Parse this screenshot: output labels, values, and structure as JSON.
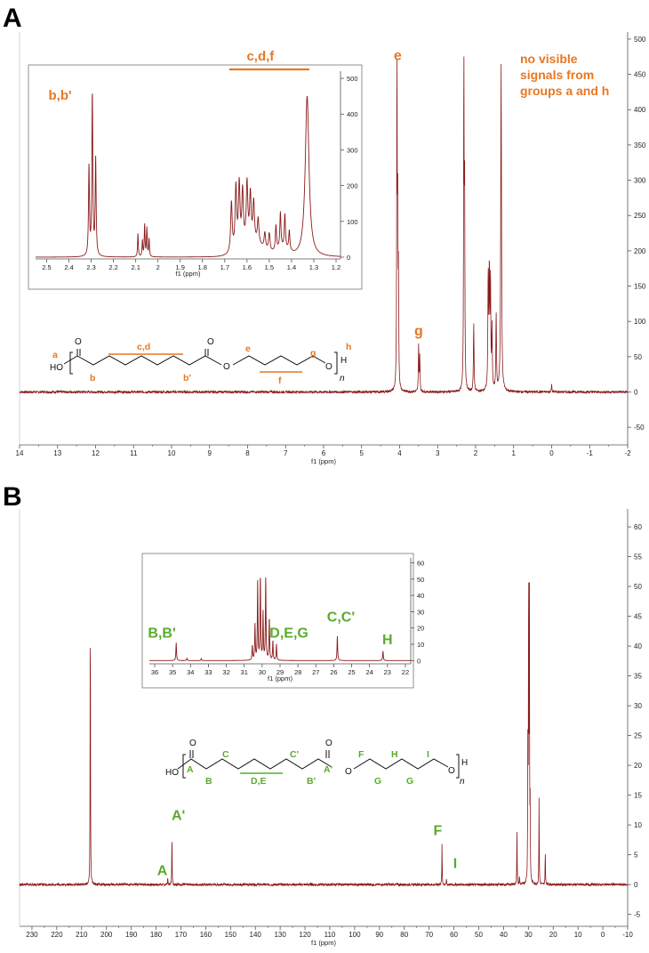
{
  "colors": {
    "spectrum": "#8b1a1a",
    "proton_annotation": "#e87722",
    "carbon_annotation": "#5aaa2e",
    "axis": "#555555"
  },
  "panels": {
    "A": {
      "letter": "A"
    },
    "B": {
      "letter": "B"
    }
  },
  "chart_data": [
    {
      "id": "A-main",
      "type": "line",
      "xlabel": "f1 (ppm)",
      "x_reversed": true,
      "xlim": [
        14,
        -2
      ],
      "ylim": [
        -75,
        510
      ],
      "xticks": [
        14,
        13,
        12,
        11,
        10,
        9,
        8,
        7,
        6,
        5,
        4,
        3,
        2,
        1,
        0,
        -1,
        -2
      ],
      "yticks": [
        -50,
        0,
        50,
        100,
        150,
        200,
        250,
        300,
        350,
        400,
        450,
        500
      ],
      "peaks": [
        {
          "x": 4.07,
          "y": 460,
          "w": 0.008
        },
        {
          "x": 4.05,
          "y": 230,
          "w": 0.008
        },
        {
          "x": 4.03,
          "y": 150,
          "w": 0.008
        },
        {
          "x": 3.5,
          "y": 68,
          "w": 0.008
        },
        {
          "x": 3.47,
          "y": 50,
          "w": 0.008
        },
        {
          "x": 2.31,
          "y": 465,
          "w": 0.008
        },
        {
          "x": 2.29,
          "y": 270,
          "w": 0.008
        },
        {
          "x": 2.05,
          "y": 95,
          "w": 0.01
        },
        {
          "x": 1.67,
          "y": 160,
          "w": 0.01
        },
        {
          "x": 1.64,
          "y": 165,
          "w": 0.01
        },
        {
          "x": 1.61,
          "y": 150,
          "w": 0.01
        },
        {
          "x": 1.57,
          "y": 85,
          "w": 0.01
        },
        {
          "x": 1.46,
          "y": 110,
          "w": 0.01
        },
        {
          "x": 1.33,
          "y": 465,
          "w": 0.012
        },
        {
          "x": 0.0,
          "y": 10,
          "w": 0.01
        }
      ],
      "annotations": [
        {
          "text": "e",
          "x": 4.05,
          "y": 470
        },
        {
          "text": "g",
          "x": 3.5,
          "y": 80
        }
      ],
      "note": [
        "no visible",
        "signals from",
        "groups a and h"
      ]
    },
    {
      "id": "A-inset",
      "type": "line",
      "xlabel": "f1 (ppm)",
      "x_reversed": true,
      "xlim": [
        2.55,
        1.18
      ],
      "ylim": [
        -5,
        520
      ],
      "xticks": [
        2.5,
        2.4,
        2.3,
        2.2,
        2.1,
        2.0,
        1.9,
        1.8,
        1.7,
        1.6,
        1.5,
        1.4,
        1.3,
        1.2
      ],
      "yticks": [
        0,
        100,
        200,
        300,
        400,
        500
      ],
      "peaks": [
        {
          "x": 2.31,
          "y": 250,
          "w": 0.0025
        },
        {
          "x": 2.295,
          "y": 455,
          "w": 0.0025
        },
        {
          "x": 2.28,
          "y": 270,
          "w": 0.0025
        },
        {
          "x": 2.09,
          "y": 65,
          "w": 0.002
        },
        {
          "x": 2.07,
          "y": 45,
          "w": 0.002
        },
        {
          "x": 2.06,
          "y": 90,
          "w": 0.002
        },
        {
          "x": 2.05,
          "y": 80,
          "w": 0.002
        },
        {
          "x": 2.04,
          "y": 50,
          "w": 0.002
        },
        {
          "x": 1.67,
          "y": 140,
          "w": 0.004
        },
        {
          "x": 1.65,
          "y": 175,
          "w": 0.004
        },
        {
          "x": 1.635,
          "y": 175,
          "w": 0.004
        },
        {
          "x": 1.62,
          "y": 150,
          "w": 0.004
        },
        {
          "x": 1.6,
          "y": 165,
          "w": 0.004
        },
        {
          "x": 1.585,
          "y": 130,
          "w": 0.004
        },
        {
          "x": 1.57,
          "y": 110,
          "w": 0.004
        },
        {
          "x": 1.55,
          "y": 70,
          "w": 0.004
        },
        {
          "x": 1.52,
          "y": 45,
          "w": 0.004
        },
        {
          "x": 1.5,
          "y": 50,
          "w": 0.004
        },
        {
          "x": 1.47,
          "y": 70,
          "w": 0.003
        },
        {
          "x": 1.45,
          "y": 100,
          "w": 0.003
        },
        {
          "x": 1.43,
          "y": 95,
          "w": 0.003
        },
        {
          "x": 1.41,
          "y": 55,
          "w": 0.003
        },
        {
          "x": 1.33,
          "y": 450,
          "w": 0.01
        }
      ],
      "annotations": [
        {
          "text": "b,b'",
          "x": 2.44,
          "y": 440
        },
        {
          "text": "c,d,f",
          "x": 1.54,
          "y": 550
        }
      ],
      "bracket": {
        "x1": 1.68,
        "x2": 1.32,
        "y": 525
      }
    },
    {
      "id": "B-main",
      "type": "line",
      "xlabel": "f1 (ppm)",
      "x_reversed": true,
      "xlim": [
        235,
        -10
      ],
      "ylim": [
        -7,
        63
      ],
      "xticks": [
        230,
        220,
        210,
        200,
        190,
        180,
        170,
        160,
        150,
        140,
        130,
        120,
        110,
        100,
        90,
        80,
        70,
        60,
        50,
        40,
        30,
        20,
        10,
        0,
        -10
      ],
      "yticks": [
        -5,
        0,
        5,
        10,
        15,
        20,
        25,
        30,
        35,
        40,
        45,
        50,
        55,
        60
      ],
      "peaks": [
        {
          "x": 206.5,
          "y": 51,
          "w": 0.08
        },
        {
          "x": 175.3,
          "y": 1.2,
          "w": 0.08
        },
        {
          "x": 173.6,
          "y": 9,
          "w": 0.08
        },
        {
          "x": 64.8,
          "y": 7,
          "w": 0.08
        },
        {
          "x": 63.0,
          "y": 1,
          "w": 0.08
        },
        {
          "x": 34.6,
          "y": 10,
          "w": 0.08
        },
        {
          "x": 33.6,
          "y": 1.5,
          "w": 0.08
        },
        {
          "x": 30.2,
          "y": 27,
          "w": 0.08
        },
        {
          "x": 29.9,
          "y": 56,
          "w": 0.08
        },
        {
          "x": 29.6,
          "y": 50,
          "w": 0.08
        },
        {
          "x": 29.3,
          "y": 12,
          "w": 0.08
        },
        {
          "x": 25.7,
          "y": 15,
          "w": 0.08
        },
        {
          "x": 23.2,
          "y": 6,
          "w": 0.08
        }
      ],
      "annotations": [
        {
          "text": "A",
          "x": 177.5,
          "y": 1.6
        },
        {
          "text": "A'",
          "x": 171,
          "y": 10.8
        },
        {
          "text": "F",
          "x": 66.5,
          "y": 8.3
        },
        {
          "text": "I",
          "x": 59.5,
          "y": 2.8
        }
      ]
    },
    {
      "id": "B-inset",
      "type": "line",
      "xlabel": "f1 (ppm)",
      "x_reversed": true,
      "xlim": [
        36.3,
        21.7
      ],
      "ylim": [
        -2,
        63
      ],
      "xticks": [
        36,
        35,
        34,
        33,
        32,
        31,
        30,
        29,
        28,
        27,
        26,
        25,
        24,
        23,
        22
      ],
      "yticks": [
        0,
        10,
        20,
        30,
        40,
        50,
        60
      ],
      "peaks": [
        {
          "x": 34.8,
          "y": 11,
          "w": 0.02
        },
        {
          "x": 34.2,
          "y": 1.5,
          "w": 0.02
        },
        {
          "x": 33.4,
          "y": 1.2,
          "w": 0.02
        },
        {
          "x": 30.55,
          "y": 9,
          "w": 0.02
        },
        {
          "x": 30.4,
          "y": 22,
          "w": 0.02
        },
        {
          "x": 30.25,
          "y": 48,
          "w": 0.02
        },
        {
          "x": 30.1,
          "y": 52,
          "w": 0.02
        },
        {
          "x": 29.95,
          "y": 29,
          "w": 0.02
        },
        {
          "x": 29.8,
          "y": 51,
          "w": 0.02
        },
        {
          "x": 29.6,
          "y": 26,
          "w": 0.02
        },
        {
          "x": 29.4,
          "y": 12,
          "w": 0.02
        },
        {
          "x": 29.2,
          "y": 10,
          "w": 0.02
        },
        {
          "x": 25.8,
          "y": 15,
          "w": 0.02
        },
        {
          "x": 23.25,
          "y": 6,
          "w": 0.02
        }
      ],
      "annotations": [
        {
          "text": "B,B'",
          "x": 35.6,
          "y": 14
        },
        {
          "text": "D,E,G",
          "x": 28.5,
          "y": 14
        },
        {
          "text": "C,C'",
          "x": 25.6,
          "y": 24
        },
        {
          "text": "H",
          "x": 23.0,
          "y": 10
        }
      ]
    }
  ],
  "structures": {
    "proton": {
      "ho": "HO",
      "o_carbonyl": "O",
      "o_ester": "O",
      "o_end": "O",
      "h_end": "H",
      "n": "n",
      "labels": {
        "a": "a",
        "b": "b",
        "cd": "c,d",
        "bp": "b'",
        "e": "e",
        "f": "f",
        "g": "g",
        "h": "h"
      }
    },
    "carbon": {
      "ho": "HO",
      "o_carbonyl": "O",
      "o_ester": "O",
      "o_end": "O",
      "h_end": "H",
      "n": "n",
      "labels": {
        "A": "A",
        "B": "B",
        "C": "C",
        "DE": "D,E",
        "Cp": "C'",
        "Bp": "B'",
        "Ap": "A'",
        "F": "F",
        "G1": "G",
        "H": "H",
        "G2": "G",
        "I": "I"
      }
    }
  }
}
